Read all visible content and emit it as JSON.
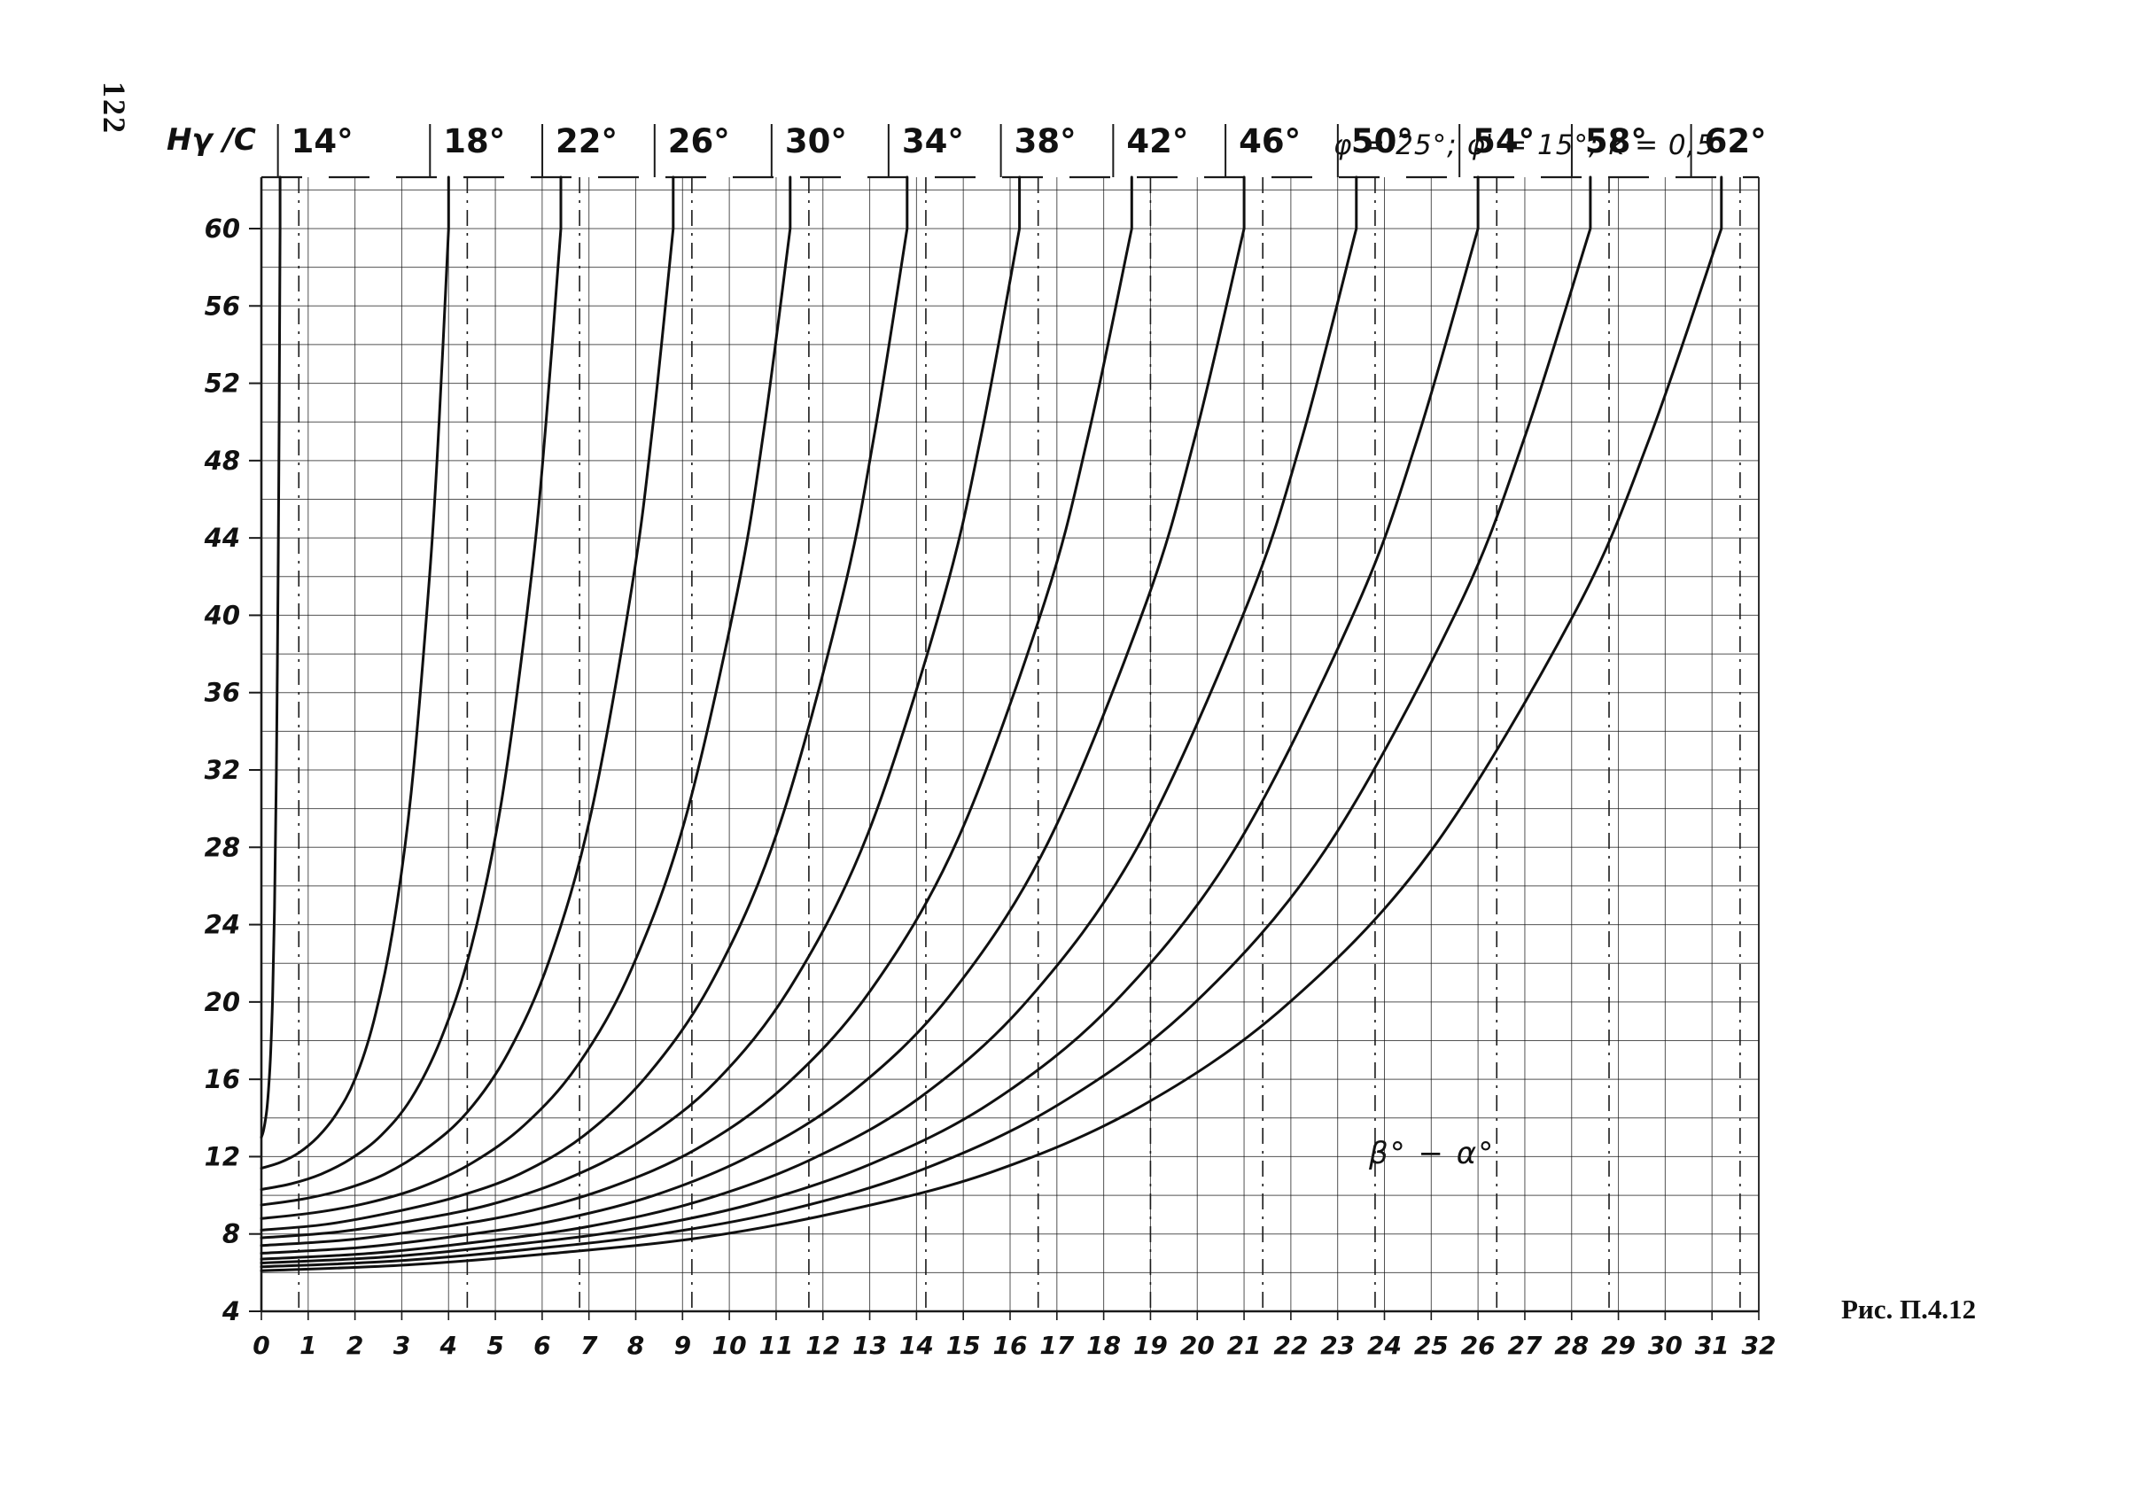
{
  "page": {
    "number": "122",
    "caption": "Рис. П.4.12"
  },
  "chart_data": {
    "type": "line",
    "title": "",
    "params_label": "φ = 25°; φ' = 15°; k = 0,5",
    "ylabel": "Hγ /C",
    "xlabel": "β° − α°",
    "xlim": [
      0,
      32
    ],
    "ylim": [
      4,
      62.5
    ],
    "grid": true,
    "x_minor_step": 1,
    "y_minor_step": 2,
    "legend_position": "labels along top edge at each curve asymptote",
    "x_ticks": [
      0,
      1,
      2,
      3,
      4,
      5,
      6,
      7,
      8,
      9,
      10,
      11,
      12,
      13,
      14,
      15,
      16,
      17,
      18,
      19,
      20,
      21,
      22,
      23,
      24,
      25,
      26,
      27,
      28,
      29,
      30,
      31,
      32
    ],
    "y_tick_labels": [
      4,
      8,
      12,
      16,
      20,
      24,
      28,
      32,
      36,
      40,
      44,
      48,
      52,
      56,
      60
    ],
    "series": [
      {
        "name": "14°",
        "points": [
          [
            0,
            13
          ],
          [
            0.04,
            13.3
          ],
          [
            0.08,
            13.8
          ],
          [
            0.12,
            14.5
          ],
          [
            0.16,
            15.7
          ],
          [
            0.2,
            17.5
          ],
          [
            0.24,
            20.3
          ],
          [
            0.28,
            24.8
          ],
          [
            0.32,
            31.8
          ],
          [
            0.36,
            42.8
          ],
          [
            0.38,
            50.4
          ],
          [
            0.4,
            60
          ]
        ]
      },
      {
        "name": "18°",
        "points": [
          [
            0,
            11.4
          ],
          [
            0.4,
            11.7
          ],
          [
            0.8,
            12.2
          ],
          [
            1.2,
            13
          ],
          [
            1.6,
            14.2
          ],
          [
            2,
            16
          ],
          [
            2.4,
            19
          ],
          [
            2.8,
            23.6
          ],
          [
            3.2,
            30.8
          ],
          [
            3.6,
            42.2
          ],
          [
            3.8,
            50.1
          ],
          [
            4,
            60
          ]
        ]
      },
      {
        "name": "22°",
        "points": [
          [
            0,
            10.3
          ],
          [
            0.64,
            10.6
          ],
          [
            1.28,
            11.1
          ],
          [
            1.92,
            11.9
          ],
          [
            2.56,
            13.1
          ],
          [
            3.2,
            15
          ],
          [
            3.84,
            18.1
          ],
          [
            4.48,
            22.8
          ],
          [
            5.12,
            30.2
          ],
          [
            5.76,
            41.8
          ],
          [
            6.08,
            49.9
          ],
          [
            6.4,
            60
          ]
        ]
      },
      {
        "name": "26°",
        "points": [
          [
            0,
            9.5
          ],
          [
            0.88,
            9.8
          ],
          [
            1.76,
            10.3
          ],
          [
            2.64,
            11.1
          ],
          [
            3.52,
            12.4
          ],
          [
            4.4,
            14.3
          ],
          [
            5.28,
            17.4
          ],
          [
            6.16,
            22.2
          ],
          [
            7.04,
            29.7
          ],
          [
            7.92,
            41.5
          ],
          [
            8.36,
            49.7
          ],
          [
            8.8,
            60
          ]
        ]
      },
      {
        "name": "30°",
        "points": [
          [
            0,
            8.8
          ],
          [
            1.13,
            9.1
          ],
          [
            2.26,
            9.6
          ],
          [
            3.39,
            10.4
          ],
          [
            4.52,
            11.7
          ],
          [
            5.65,
            13.7
          ],
          [
            6.78,
            16.8
          ],
          [
            7.91,
            21.7
          ],
          [
            9.04,
            29.3
          ],
          [
            10.17,
            41.2
          ],
          [
            10.74,
            49.6
          ],
          [
            11.3,
            60
          ]
        ]
      },
      {
        "name": "34°",
        "points": [
          [
            0,
            8.2
          ],
          [
            1.38,
            8.5
          ],
          [
            2.76,
            9.1
          ],
          [
            4.14,
            9.9
          ],
          [
            5.52,
            11.1
          ],
          [
            6.9,
            13.1
          ],
          [
            8.28,
            16.3
          ],
          [
            9.66,
            21.2
          ],
          [
            11.04,
            28.9
          ],
          [
            12.42,
            41
          ],
          [
            13.11,
            49.5
          ],
          [
            13.8,
            60
          ]
        ]
      },
      {
        "name": "38°",
        "points": [
          [
            0,
            7.8
          ],
          [
            1.62,
            8.1
          ],
          [
            3.24,
            8.7
          ],
          [
            4.86,
            9.5
          ],
          [
            6.48,
            10.8
          ],
          [
            8.1,
            12.8
          ],
          [
            9.72,
            15.9
          ],
          [
            11.34,
            20.9
          ],
          [
            12.96,
            28.7
          ],
          [
            14.58,
            40.9
          ],
          [
            15.39,
            49.4
          ],
          [
            16.2,
            60
          ]
        ]
      },
      {
        "name": "42°",
        "points": [
          [
            0,
            7.4
          ],
          [
            1.86,
            7.7
          ],
          [
            3.72,
            8.3
          ],
          [
            5.58,
            9.1
          ],
          [
            7.44,
            10.4
          ],
          [
            9.3,
            12.4
          ],
          [
            11.16,
            15.6
          ],
          [
            13.02,
            20.6
          ],
          [
            14.88,
            28.4
          ],
          [
            16.74,
            40.7
          ],
          [
            17.67,
            49.3
          ],
          [
            18.6,
            60
          ]
        ]
      },
      {
        "name": "46°",
        "points": [
          [
            0,
            7
          ],
          [
            2.1,
            7.3
          ],
          [
            4.2,
            7.9
          ],
          [
            6.3,
            8.7
          ],
          [
            8.4,
            10
          ],
          [
            10.5,
            12.1
          ],
          [
            12.6,
            15.3
          ],
          [
            14.7,
            20.3
          ],
          [
            16.8,
            28.2
          ],
          [
            18.9,
            40.6
          ],
          [
            19.95,
            49.2
          ],
          [
            21,
            60
          ]
        ]
      },
      {
        "name": "50°",
        "points": [
          [
            0,
            6.7
          ],
          [
            2.34,
            7
          ],
          [
            4.68,
            7.6
          ],
          [
            7.02,
            8.4
          ],
          [
            9.36,
            9.7
          ],
          [
            11.7,
            11.8
          ],
          [
            14.04,
            15
          ],
          [
            16.38,
            20.1
          ],
          [
            18.72,
            28
          ],
          [
            21.06,
            40.5
          ],
          [
            22.23,
            49.1
          ],
          [
            23.4,
            60
          ]
        ]
      },
      {
        "name": "54°",
        "points": [
          [
            0,
            6.5
          ],
          [
            2.6,
            6.8
          ],
          [
            5.2,
            7.4
          ],
          [
            7.8,
            8.2
          ],
          [
            10.4,
            9.5
          ],
          [
            13,
            11.6
          ],
          [
            15.6,
            14.8
          ],
          [
            18.2,
            19.9
          ],
          [
            20.8,
            27.9
          ],
          [
            23.4,
            40.4
          ],
          [
            24.7,
            49.1
          ],
          [
            26,
            60
          ]
        ]
      },
      {
        "name": "58°",
        "points": [
          [
            0,
            6.3
          ],
          [
            2.84,
            6.6
          ],
          [
            5.68,
            7.2
          ],
          [
            8.52,
            8
          ],
          [
            11.36,
            9.3
          ],
          [
            14.2,
            11.4
          ],
          [
            17.04,
            14.7
          ],
          [
            19.88,
            19.8
          ],
          [
            22.72,
            27.8
          ],
          [
            25.56,
            40.3
          ],
          [
            26.98,
            49.1
          ],
          [
            28.4,
            60
          ]
        ]
      },
      {
        "name": "62°",
        "points": [
          [
            0,
            6.1
          ],
          [
            3.12,
            6.4
          ],
          [
            6.24,
            7
          ],
          [
            9.36,
            7.8
          ],
          [
            12.48,
            9.2
          ],
          [
            15.6,
            11.2
          ],
          [
            18.72,
            14.5
          ],
          [
            21.84,
            19.7
          ],
          [
            24.96,
            27.7
          ],
          [
            28.08,
            40.2
          ],
          [
            29.64,
            49
          ],
          [
            31.2,
            60
          ]
        ]
      }
    ]
  }
}
